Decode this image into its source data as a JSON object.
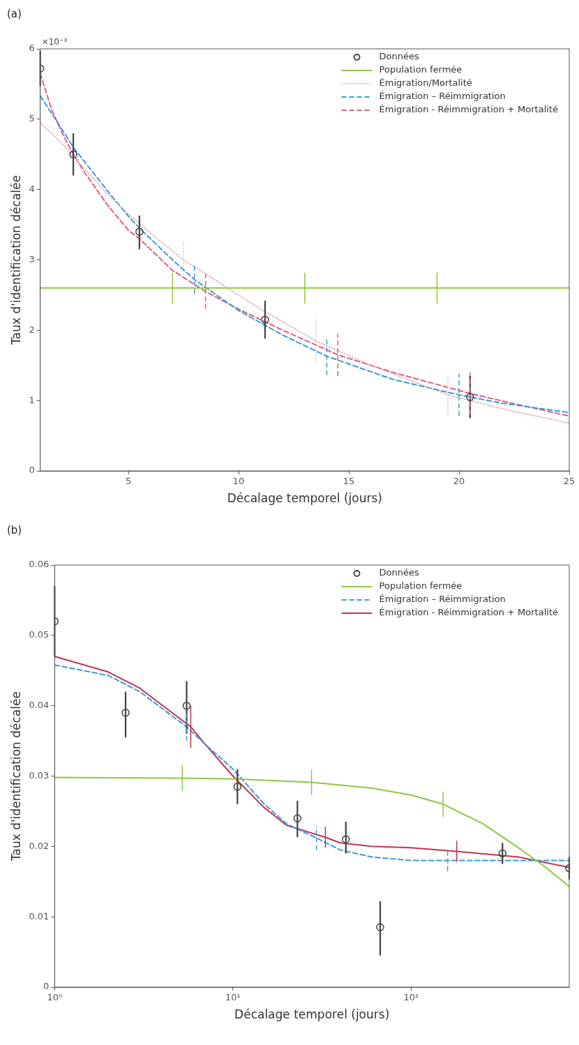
{
  "chart_data": [
    {
      "type": "line",
      "title": "(a)",
      "xlabel": "Décalage temporel (jours)",
      "ylabel": "Taux d'identification décalée",
      "annotations": [
        "×10⁻³"
      ],
      "xlim": [
        1,
        25
      ],
      "xticks": [
        5,
        10,
        15,
        20,
        25
      ],
      "ylim": [
        0,
        6
      ],
      "yticks": [
        0,
        1,
        2,
        3,
        4,
        5,
        6
      ],
      "grid": false,
      "legend": "top right",
      "series": [
        {
          "name": "Données",
          "type": "scatter",
          "marker": "circle",
          "color": "#404040",
          "x": [
            1,
            2.5,
            5.5,
            11.2,
            20.5
          ],
          "values": [
            5.72,
            4.5,
            3.4,
            2.15,
            1.05
          ],
          "errors": [
            [
              5.47,
              5.97
            ],
            [
              4.2,
              4.8
            ],
            [
              3.15,
              3.63
            ],
            [
              1.88,
              2.42
            ],
            [
              0.75,
              1.35
            ]
          ]
        },
        {
          "name": "Population fermée",
          "type": "line",
          "line_style": "solid",
          "color": "#8dc63f",
          "x": [
            1,
            7,
            13,
            19,
            25
          ],
          "values": [
            2.6,
            2.6,
            2.6,
            2.6,
            2.6
          ],
          "errors": [
            null,
            0.22,
            0.22,
            0.22,
            null
          ]
        },
        {
          "name": "Émigration/Mortalité",
          "type": "line",
          "line_style": "dotted",
          "color": "#d9a3a8",
          "x": [
            1,
            2,
            3,
            4,
            5,
            6,
            7.5,
            9,
            11,
            13.5,
            16,
            19.5,
            22,
            25
          ],
          "values": [
            4.95,
            4.65,
            4.3,
            3.95,
            3.65,
            3.38,
            3.0,
            2.7,
            2.3,
            1.85,
            1.5,
            1.08,
            0.88,
            0.68
          ],
          "errors": [
            null,
            null,
            null,
            null,
            null,
            null,
            0.25,
            null,
            null,
            0.3,
            null,
            0.3,
            null,
            null
          ]
        },
        {
          "name": "Émigration – Réimmigration",
          "type": "line",
          "line_style": "dashed",
          "color": "#3a9ad9",
          "x": [
            1,
            2,
            2.5,
            3,
            4,
            5,
            5.5,
            6,
            7,
            8,
            10,
            12,
            14,
            17,
            20,
            22,
            25
          ],
          "values": [
            5.33,
            4.85,
            4.6,
            4.4,
            4.0,
            3.62,
            3.45,
            3.3,
            3.0,
            2.72,
            2.28,
            1.93,
            1.63,
            1.3,
            1.08,
            0.96,
            0.83
          ],
          "errors": [
            null,
            null,
            null,
            null,
            null,
            null,
            null,
            null,
            null,
            0.2,
            null,
            null,
            0.27,
            null,
            0.3,
            null,
            null
          ]
        },
        {
          "name": "Émigration - Réimmigration + Mortalité",
          "type": "line",
          "line_style": "dashed",
          "color": "#e0607e",
          "x": [
            1,
            1.5,
            2,
            2.5,
            3,
            4,
            5,
            5.5,
            6,
            7,
            8.5,
            10,
            12,
            14.5,
            17,
            20.5,
            23,
            25
          ],
          "values": [
            5.65,
            5.15,
            4.8,
            4.5,
            4.25,
            3.8,
            3.42,
            3.3,
            3.15,
            2.85,
            2.55,
            2.3,
            2.0,
            1.65,
            1.4,
            1.1,
            0.92,
            0.78
          ],
          "errors": [
            null,
            null,
            null,
            null,
            null,
            null,
            null,
            null,
            null,
            null,
            0.25,
            null,
            null,
            0.3,
            null,
            0.3,
            null,
            null
          ]
        }
      ]
    },
    {
      "type": "line",
      "title": "(b)",
      "xlabel": "Décalage temporel (jours)",
      "ylabel": "Taux d'identification décalée",
      "log": "x",
      "xlim": [
        1,
        770
      ],
      "xticks": [
        {
          "value": 1,
          "label": "10⁰"
        },
        {
          "value": 10,
          "label": "10¹"
        },
        {
          "value": 100,
          "label": "10²"
        }
      ],
      "ylim": [
        0,
        0.06
      ],
      "yticks": [
        0,
        0.01,
        0.02,
        0.03,
        0.04,
        0.05,
        0.06
      ],
      "grid": false,
      "legend": "top right",
      "series": [
        {
          "name": "Données",
          "type": "scatter",
          "marker": "circle",
          "color": "#404040",
          "x": [
            1,
            2.5,
            5.5,
            10.6,
            23,
            43,
            67,
            325,
            770
          ],
          "values": [
            0.052,
            0.039,
            0.04,
            0.0285,
            0.024,
            0.021,
            0.0085,
            0.019,
            0.0169
          ],
          "errors": [
            [
              0.047,
              0.057
            ],
            [
              0.0355,
              0.042
            ],
            [
              0.036,
              0.0435
            ],
            [
              0.026,
              0.031
            ],
            [
              0.0213,
              0.0265
            ],
            [
              0.019,
              0.0235
            ],
            [
              0.0045,
              0.0122
            ],
            [
              0.0175,
              0.0205
            ],
            [
              0.0153,
              0.0185
            ]
          ]
        },
        {
          "name": "Population fermée",
          "type": "line",
          "line_style": "solid",
          "color": "#8dc63f",
          "x": [
            1,
            5.2,
            10,
            27.6,
            60,
            100,
            151,
            250,
            400,
            550,
            770
          ],
          "values": [
            0.0298,
            0.0297,
            0.0296,
            0.0291,
            0.0283,
            0.0273,
            0.026,
            0.0233,
            0.0198,
            0.0173,
            0.0143
          ],
          "errors": [
            null,
            0.0018,
            null,
            0.0018,
            null,
            null,
            0.0018,
            null,
            null,
            null,
            null
          ]
        },
        {
          "name": "Émigration – Réimmigration",
          "type": "line",
          "line_style": "dashed",
          "color": "#3a9ad9",
          "x": [
            1,
            2,
            3,
            5.5,
            7,
            10,
            15,
            20,
            29.4,
            40,
            60,
            100,
            160,
            300,
            770
          ],
          "values": [
            0.0458,
            0.0443,
            0.042,
            0.037,
            0.0345,
            0.031,
            0.026,
            0.0232,
            0.0212,
            0.0195,
            0.0185,
            0.018,
            0.018,
            0.018,
            0.018
          ],
          "errors": [
            null,
            null,
            null,
            0.002,
            null,
            null,
            null,
            null,
            0.0017,
            null,
            null,
            null,
            0.0015,
            null,
            null
          ]
        },
        {
          "name": "Émigration - Réimmigration + Mortalité",
          "type": "line",
          "line_style": "solid",
          "color": "#c0344f",
          "x": [
            1,
            2,
            3,
            5.8,
            7,
            10,
            15,
            20,
            33,
            40,
            60,
            100,
            180,
            400,
            770
          ],
          "values": [
            0.047,
            0.0448,
            0.0425,
            0.037,
            0.0345,
            0.03,
            0.0255,
            0.023,
            0.0213,
            0.0205,
            0.02,
            0.0198,
            0.0193,
            0.0185,
            0.017
          ],
          "errors": [
            null,
            null,
            null,
            0.003,
            null,
            null,
            null,
            null,
            0.0015,
            null,
            null,
            null,
            0.0015,
            null,
            null
          ]
        }
      ]
    }
  ]
}
